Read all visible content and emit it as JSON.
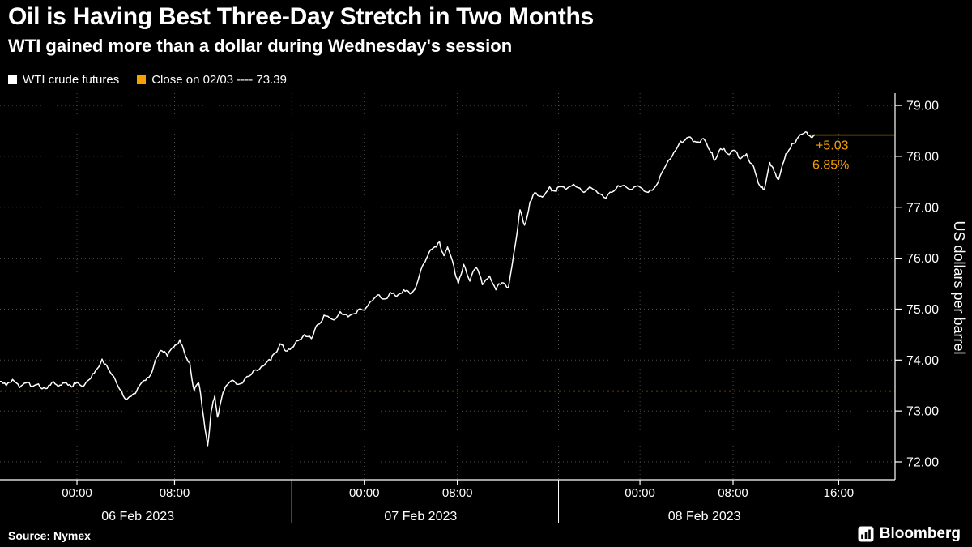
{
  "colors": {
    "background": "#000000",
    "text": "#FFFFFF",
    "accent": "#F7A000",
    "grid": "#4D4D4D",
    "axis": "#FFFFFF"
  },
  "footer": {
    "source": "Source: Nymex",
    "brand": "Bloomberg"
  },
  "chart_data": {
    "type": "line",
    "title": "Oil is Having Best Three-Day Stretch in Two Months",
    "subtitle": "WTI gained more than a dollar during Wednesday's session",
    "ylabel": "US dollars per barrel",
    "y_axis_side": "right",
    "ylim": [
      71.65,
      79.24
    ],
    "yticks": [
      {
        "value": 72,
        "label": "72.00"
      },
      {
        "value": 73,
        "label": "73.00"
      },
      {
        "value": 74,
        "label": "74.00"
      },
      {
        "value": 75,
        "label": "75.00"
      },
      {
        "value": 76,
        "label": "76.00"
      },
      {
        "value": 77,
        "label": "77.00"
      },
      {
        "value": 78,
        "label": "78.00"
      },
      {
        "value": 79,
        "label": "79.00"
      }
    ],
    "xticks": [
      {
        "pos": 0.086,
        "label": "00:00"
      },
      {
        "pos": 0.195,
        "label": "08:00"
      },
      {
        "pos": 0.407,
        "label": "00:00"
      },
      {
        "pos": 0.511,
        "label": "08:00"
      },
      {
        "pos": 0.715,
        "label": "00:00"
      },
      {
        "pos": 0.819,
        "label": "08:00"
      },
      {
        "pos": 0.937,
        "label": "16:00"
      }
    ],
    "day_separators": [
      0.326,
      0.624
    ],
    "day_labels": [
      {
        "pos": 0.154,
        "label": "06 Feb 2023"
      },
      {
        "pos": 0.47,
        "label": "07 Feb 2023"
      },
      {
        "pos": 0.787,
        "label": "08 Feb 2023"
      }
    ],
    "reference_line": {
      "value": 73.39,
      "style": "dotted",
      "legend_label": "Close on 02/03 ---- 73.39"
    },
    "last_price": {
      "value": 78.42,
      "start_pos": 0.905,
      "change": "+5.03",
      "change_pct": "6.85%"
    },
    "series": [
      {
        "name": "WTI crude futures",
        "color": "#FFFFFF",
        "x_unit": "fraction_of_plot_width",
        "points": [
          [
            0.0,
            73.58
          ],
          [
            0.007,
            73.5
          ],
          [
            0.014,
            73.62
          ],
          [
            0.022,
            73.46
          ],
          [
            0.029,
            73.55
          ],
          [
            0.036,
            73.48
          ],
          [
            0.043,
            73.53
          ],
          [
            0.051,
            73.44
          ],
          [
            0.058,
            73.56
          ],
          [
            0.065,
            73.48
          ],
          [
            0.072,
            73.55
          ],
          [
            0.08,
            73.47
          ],
          [
            0.086,
            73.56
          ],
          [
            0.093,
            73.48
          ],
          [
            0.1,
            73.62
          ],
          [
            0.107,
            73.8
          ],
          [
            0.114,
            74.02
          ],
          [
            0.119,
            73.9
          ],
          [
            0.127,
            73.68
          ],
          [
            0.134,
            73.42
          ],
          [
            0.141,
            73.22
          ],
          [
            0.148,
            73.32
          ],
          [
            0.154,
            73.45
          ],
          [
            0.161,
            73.6
          ],
          [
            0.168,
            73.7
          ],
          [
            0.175,
            74.05
          ],
          [
            0.181,
            74.18
          ],
          [
            0.187,
            74.08
          ],
          [
            0.194,
            74.25
          ],
          [
            0.201,
            74.4
          ],
          [
            0.206,
            74.15
          ],
          [
            0.212,
            73.95
          ],
          [
            0.217,
            73.4
          ],
          [
            0.222,
            73.55
          ],
          [
            0.226,
            73.05
          ],
          [
            0.232,
            72.32
          ],
          [
            0.236,
            73.0
          ],
          [
            0.24,
            73.3
          ],
          [
            0.243,
            72.88
          ],
          [
            0.248,
            73.28
          ],
          [
            0.253,
            73.5
          ],
          [
            0.262,
            73.58
          ],
          [
            0.271,
            73.55
          ],
          [
            0.281,
            73.72
          ],
          [
            0.29,
            73.82
          ],
          [
            0.299,
            73.98
          ],
          [
            0.306,
            74.12
          ],
          [
            0.313,
            74.32
          ],
          [
            0.319,
            74.18
          ],
          [
            0.326,
            74.25
          ],
          [
            0.333,
            74.38
          ],
          [
            0.34,
            74.5
          ],
          [
            0.348,
            74.42
          ],
          [
            0.355,
            74.7
          ],
          [
            0.362,
            74.88
          ],
          [
            0.371,
            74.8
          ],
          [
            0.38,
            74.95
          ],
          [
            0.389,
            74.85
          ],
          [
            0.398,
            74.92
          ],
          [
            0.407,
            74.98
          ],
          [
            0.414,
            75.15
          ],
          [
            0.422,
            75.28
          ],
          [
            0.429,
            75.2
          ],
          [
            0.436,
            75.33
          ],
          [
            0.443,
            75.25
          ],
          [
            0.451,
            75.38
          ],
          [
            0.458,
            75.3
          ],
          [
            0.465,
            75.45
          ],
          [
            0.472,
            75.85
          ],
          [
            0.478,
            76.05
          ],
          [
            0.484,
            76.2
          ],
          [
            0.491,
            76.32
          ],
          [
            0.496,
            76.05
          ],
          [
            0.5,
            76.22
          ],
          [
            0.507,
            75.85
          ],
          [
            0.512,
            75.5
          ],
          [
            0.518,
            75.88
          ],
          [
            0.525,
            75.55
          ],
          [
            0.532,
            75.82
          ],
          [
            0.539,
            75.48
          ],
          [
            0.547,
            75.65
          ],
          [
            0.554,
            75.38
          ],
          [
            0.561,
            75.52
          ],
          [
            0.568,
            75.42
          ],
          [
            0.576,
            76.3
          ],
          [
            0.581,
            76.95
          ],
          [
            0.586,
            76.65
          ],
          [
            0.592,
            77.1
          ],
          [
            0.599,
            77.28
          ],
          [
            0.606,
            77.2
          ],
          [
            0.614,
            77.4
          ],
          [
            0.619,
            77.32
          ],
          [
            0.624,
            77.4
          ],
          [
            0.632,
            77.35
          ],
          [
            0.641,
            77.45
          ],
          [
            0.65,
            77.32
          ],
          [
            0.659,
            77.4
          ],
          [
            0.668,
            77.28
          ],
          [
            0.677,
            77.18
          ],
          [
            0.686,
            77.32
          ],
          [
            0.695,
            77.42
          ],
          [
            0.704,
            77.35
          ],
          [
            0.713,
            77.42
          ],
          [
            0.722,
            77.3
          ],
          [
            0.731,
            77.38
          ],
          [
            0.74,
            77.7
          ],
          [
            0.749,
            77.95
          ],
          [
            0.757,
            78.18
          ],
          [
            0.764,
            78.3
          ],
          [
            0.771,
            78.38
          ],
          [
            0.778,
            78.28
          ],
          [
            0.786,
            78.35
          ],
          [
            0.793,
            78.12
          ],
          [
            0.798,
            77.92
          ],
          [
            0.805,
            78.15
          ],
          [
            0.813,
            78.05
          ],
          [
            0.82,
            78.12
          ],
          [
            0.827,
            77.95
          ],
          [
            0.834,
            78.05
          ],
          [
            0.842,
            77.8
          ],
          [
            0.849,
            77.42
          ],
          [
            0.854,
            77.35
          ],
          [
            0.86,
            77.88
          ],
          [
            0.865,
            77.7
          ],
          [
            0.87,
            77.55
          ],
          [
            0.878,
            78.05
          ],
          [
            0.885,
            78.25
          ],
          [
            0.892,
            78.38
          ],
          [
            0.9,
            78.48
          ],
          [
            0.905,
            78.4
          ],
          [
            0.91,
            78.42
          ]
        ]
      }
    ],
    "render_noise": {
      "iterations": 2,
      "amplitude": 0.06,
      "seed": 11
    }
  }
}
